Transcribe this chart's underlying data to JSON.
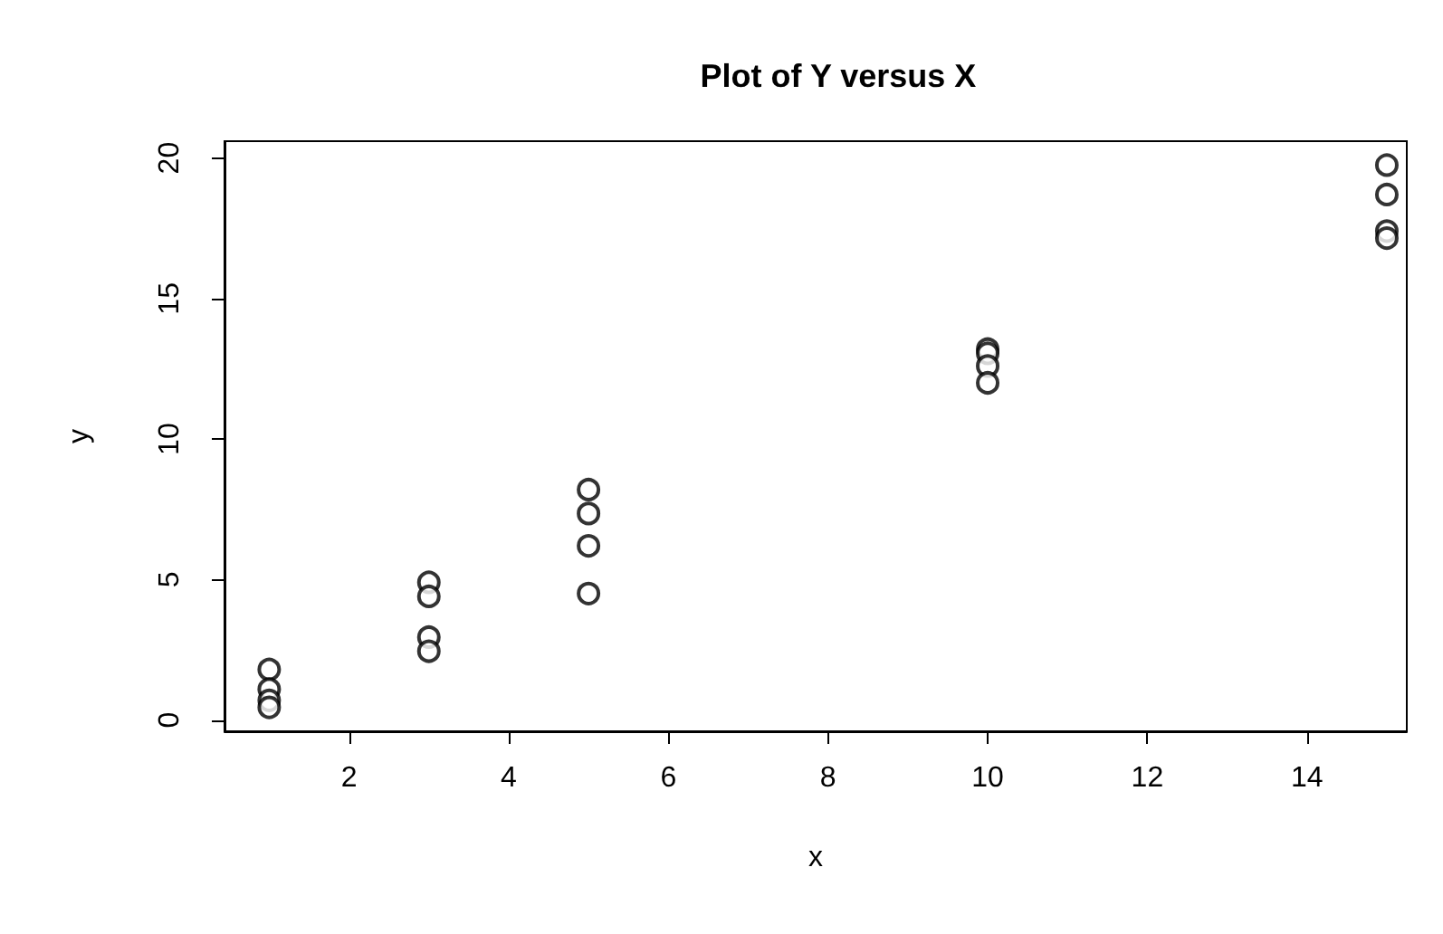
{
  "chart_data": {
    "type": "scatter",
    "title": "Plot of Y versus X",
    "xlabel": "x",
    "ylabel": "y",
    "x": [
      1,
      1,
      1,
      1,
      3,
      3,
      3,
      3,
      5,
      5,
      5,
      5,
      10,
      10,
      10,
      10,
      15,
      15,
      15,
      15
    ],
    "series": [
      {
        "color": "#000000",
        "values": [
          1.8,
          1.1,
          0.7,
          0.45,
          4.9,
          4.4,
          2.95,
          2.45,
          8.2,
          7.35,
          6.2,
          4.5,
          13.2,
          13.05,
          12.6,
          12.0,
          19.75,
          18.7,
          17.4,
          17.15
        ]
      }
    ],
    "xlim": [
      0.44,
      15.25
    ],
    "ylim": [
      -0.4,
      20.6
    ],
    "xticks": [
      2,
      4,
      6,
      8,
      10,
      12,
      14
    ],
    "yticks": [
      0,
      5,
      10,
      15,
      20
    ],
    "grid": false,
    "marker": "circle"
  }
}
